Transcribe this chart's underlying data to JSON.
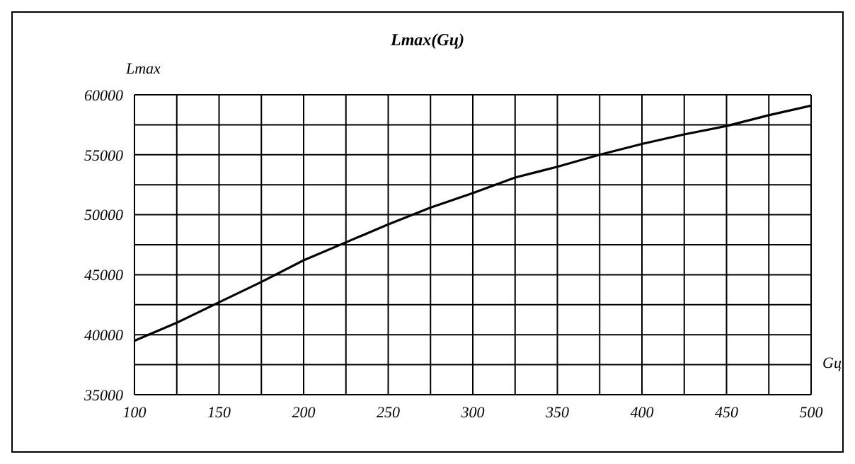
{
  "chart_data": {
    "type": "line",
    "title": "Lmax(Gц)",
    "xlabel": "Gц",
    "ylabel": "Lmax",
    "x": [
      100,
      125,
      150,
      175,
      200,
      225,
      250,
      275,
      300,
      325,
      350,
      375,
      400,
      425,
      450,
      475,
      500
    ],
    "series": [
      {
        "color": "#000000",
        "values": [
          39500,
          41000,
          42700,
          44400,
          46200,
          47700,
          49200,
          50600,
          51800,
          53100,
          54000,
          55000,
          55900,
          56700,
          57400,
          58300,
          59100
        ]
      }
    ],
    "xlim": [
      100,
      500
    ],
    "xticks": [
      100,
      {
        "value": 125,
        "label": null
      },
      150,
      {
        "value": 175,
        "label": null
      },
      200,
      {
        "value": 225,
        "label": null
      },
      250,
      {
        "value": 275,
        "label": null
      },
      300,
      {
        "value": 325,
        "label": null
      },
      350,
      {
        "value": 375,
        "label": null
      },
      400,
      {
        "value": 425,
        "label": null
      },
      450,
      {
        "value": 475,
        "label": null
      },
      500
    ],
    "ylim": [
      35000,
      60000
    ],
    "yticks": [
      35000,
      {
        "value": 37500,
        "label": null
      },
      40000,
      {
        "value": 42500,
        "label": null
      },
      45000,
      {
        "value": 47500,
        "label": null
      },
      50000,
      {
        "value": 52500,
        "label": null
      },
      55000,
      {
        "value": 57500,
        "label": null
      },
      60000
    ],
    "grid": true,
    "marker": "none",
    "line_style": "solid",
    "legend": false
  }
}
